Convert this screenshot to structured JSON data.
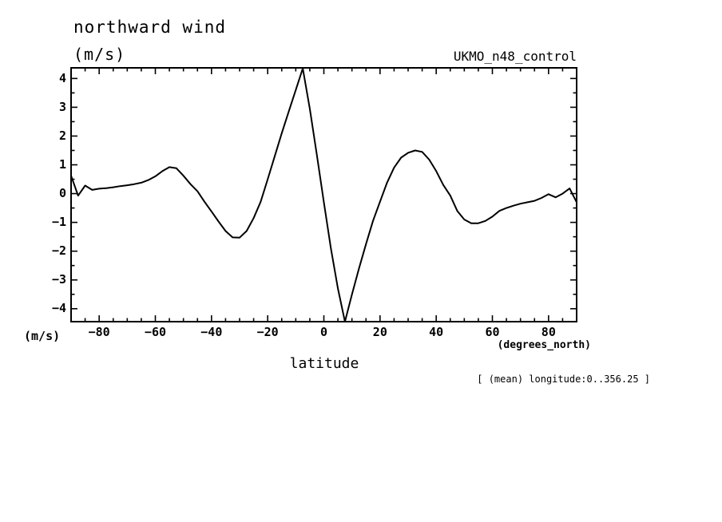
{
  "header": {
    "title": "northward wind",
    "units": "(m/s)",
    "dataset": "UKMO_n48_control"
  },
  "axes": {
    "y_unit_bottom": "(m/s)",
    "x_unit": "(degrees_north)",
    "x_label": "latitude"
  },
  "footer": {
    "annotation": "[ (mean) longitude:0..356.25 ]"
  },
  "colors": {
    "line": "#000000",
    "background": "#ffffff",
    "text": "#000000"
  },
  "chart_data": {
    "type": "line",
    "title": "northward wind",
    "xlabel": "latitude",
    "ylabel": "(m/s)",
    "x_unit": "degrees_north",
    "series_name": "UKMO_n48_control",
    "annotation": "[ (mean) longitude:0..356.25 ]",
    "grid": false,
    "legend_position": "none",
    "xlim": [
      -90,
      90
    ],
    "ylim": [
      -4.45,
      4.37
    ],
    "x_major_ticks": [
      -80,
      -60,
      -40,
      -20,
      0,
      20,
      40,
      60,
      80
    ],
    "x_minor_tick_step": 5,
    "y_major_ticks": [
      -4,
      -3,
      -2,
      -1,
      0,
      1,
      2,
      3,
      4
    ],
    "y_minor_tick_step": 0.5,
    "x": [
      -90,
      -87.5,
      -85,
      -82.5,
      -80,
      -77.5,
      -75,
      -72.5,
      -70,
      -67.5,
      -65,
      -62.5,
      -60,
      -57.5,
      -55,
      -52.5,
      -50,
      -47.5,
      -45,
      -42.5,
      -40,
      -37.5,
      -35,
      -32.5,
      -30,
      -27.5,
      -25,
      -22.5,
      -20,
      -17.5,
      -15,
      -12.5,
      -10,
      -7.5,
      -5,
      -2.5,
      0,
      2.5,
      5,
      7.5,
      10,
      12.5,
      15,
      17.5,
      20,
      22.5,
      25,
      27.5,
      30,
      32.5,
      35,
      37.5,
      40,
      42.5,
      45,
      47.5,
      50,
      52.5,
      55,
      57.5,
      60,
      62.5,
      65,
      67.5,
      70,
      72.5,
      75,
      77.5,
      80,
      82.5,
      85,
      87.5,
      90
    ],
    "y": [
      0.62,
      -0.07,
      0.28,
      0.13,
      0.17,
      0.19,
      0.22,
      0.26,
      0.29,
      0.33,
      0.38,
      0.47,
      0.6,
      0.78,
      0.92,
      0.88,
      0.62,
      0.33,
      0.08,
      -0.28,
      -0.62,
      -0.97,
      -1.3,
      -1.52,
      -1.53,
      -1.3,
      -0.85,
      -0.28,
      0.5,
      1.3,
      2.1,
      2.85,
      3.6,
      4.35,
      2.95,
      1.35,
      -0.3,
      -1.9,
      -3.3,
      -4.45,
      -3.5,
      -2.6,
      -1.75,
      -0.95,
      -0.28,
      0.38,
      0.9,
      1.25,
      1.42,
      1.5,
      1.45,
      1.18,
      0.78,
      0.3,
      -0.07,
      -0.6,
      -0.9,
      -1.03,
      -1.03,
      -0.95,
      -0.8,
      -0.6,
      -0.5,
      -0.42,
      -0.35,
      -0.3,
      -0.25,
      -0.15,
      -0.02,
      -0.13,
      0.0,
      0.18,
      -0.3
    ]
  }
}
